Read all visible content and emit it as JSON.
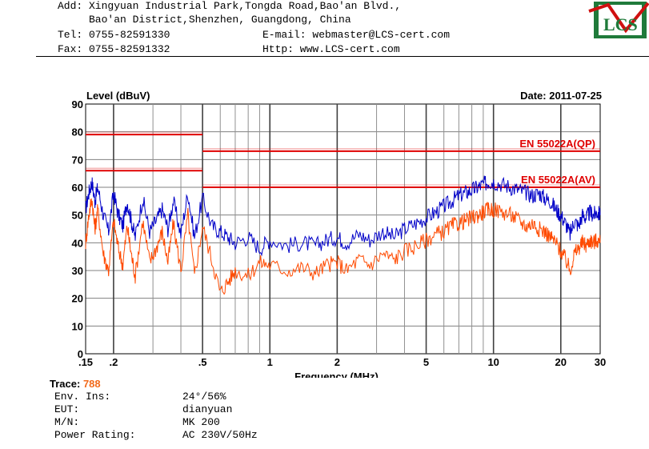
{
  "header": {
    "address_line1": "Add: Xingyuan Industrial Park,Tongda Road,Bao'an Blvd.,",
    "address_line2": "     Bao'an District,Shenzhen, Guangdong, China",
    "tel": "Tel: 0755-82591330",
    "email": "E-mail: webmaster@LCS-cert.com",
    "fax": "Fax: 0755-82591332",
    "http": "Http: www.LCS-cert.com",
    "logo_text": "LCS"
  },
  "chart_data": {
    "type": "line",
    "ylabel": "Level (dBuV)",
    "xlabel": "Frequency (MHz)",
    "date": "Date: 2011-07-25",
    "xscale": "log",
    "xlim": [
      0.15,
      30
    ],
    "ylim": [
      0,
      90
    ],
    "x_ticks": [
      {
        "v": 0.15,
        "label": ".15"
      },
      {
        "v": 0.2,
        "label": ".2"
      },
      {
        "v": 0.5,
        "label": ".5"
      },
      {
        "v": 1,
        "label": "1"
      },
      {
        "v": 2,
        "label": "2"
      },
      {
        "v": 5,
        "label": "5"
      },
      {
        "v": 10,
        "label": "10"
      },
      {
        "v": 20,
        "label": "20"
      },
      {
        "v": 30,
        "label": "30"
      }
    ],
    "y_ticks": [
      0,
      10,
      20,
      30,
      40,
      50,
      60,
      70,
      80,
      90
    ],
    "grid": true,
    "limits": [
      {
        "name": "EN 55022A(QP)",
        "segments": [
          {
            "x": [
              0.15,
              0.5
            ],
            "y": 79
          },
          {
            "x": [
              0.5,
              30
            ],
            "y": 73
          }
        ]
      },
      {
        "name": "EN 55022A(AV)",
        "segments": [
          {
            "x": [
              0.15,
              0.5
            ],
            "y": 66
          },
          {
            "x": [
              0.5,
              30
            ],
            "y": 60
          }
        ]
      }
    ],
    "series": [
      {
        "color": "#0000c8",
        "x": [
          0.15,
          0.155,
          0.16,
          0.165,
          0.17,
          0.18,
          0.19,
          0.2,
          0.21,
          0.22,
          0.23,
          0.24,
          0.25,
          0.27,
          0.29,
          0.31,
          0.33,
          0.35,
          0.37,
          0.4,
          0.43,
          0.46,
          0.5,
          0.55,
          0.6,
          0.65,
          0.7,
          0.8,
          0.9,
          1,
          1.2,
          1.4,
          1.6,
          1.8,
          2,
          2.2,
          2.5,
          2.8,
          3.2,
          3.6,
          4,
          4.5,
          5,
          5.5,
          6,
          6.5,
          7,
          7.5,
          8,
          8.5,
          9,
          9.5,
          10,
          11,
          12,
          13,
          14,
          15,
          16,
          17,
          18,
          19,
          20,
          21,
          22,
          23,
          24,
          25,
          26,
          27,
          28,
          29,
          30
        ],
        "y": [
          52,
          58,
          62,
          55,
          60,
          50,
          44,
          58,
          50,
          46,
          55,
          48,
          42,
          56,
          44,
          48,
          52,
          45,
          55,
          43,
          58,
          42,
          56,
          46,
          44,
          42,
          40,
          42,
          38,
          41,
          39,
          40,
          39,
          41,
          42,
          40,
          43,
          41,
          44,
          42,
          45,
          47,
          49,
          51,
          53,
          55,
          57,
          58,
          59,
          60,
          61,
          62,
          62,
          61,
          60,
          59,
          58,
          57,
          58,
          56,
          55,
          52,
          50,
          47,
          43,
          48,
          46,
          50,
          49,
          51,
          50,
          51,
          50
        ]
      },
      {
        "color": "#ff4a00",
        "x": [
          0.15,
          0.155,
          0.16,
          0.165,
          0.17,
          0.18,
          0.19,
          0.2,
          0.21,
          0.22,
          0.23,
          0.24,
          0.25,
          0.27,
          0.29,
          0.31,
          0.33,
          0.35,
          0.37,
          0.4,
          0.43,
          0.46,
          0.5,
          0.55,
          0.6,
          0.65,
          0.7,
          0.8,
          0.9,
          1,
          1.2,
          1.4,
          1.6,
          1.8,
          2,
          2.2,
          2.5,
          2.8,
          3.2,
          3.6,
          4,
          4.5,
          5,
          5.5,
          6,
          6.5,
          7,
          7.5,
          8,
          8.5,
          9,
          9.5,
          10,
          11,
          12,
          13,
          14,
          15,
          16,
          17,
          18,
          19,
          20,
          21,
          22,
          23,
          24,
          25,
          26,
          27,
          28,
          29,
          30
        ],
        "y": [
          40,
          50,
          56,
          45,
          52,
          36,
          30,
          48,
          38,
          32,
          46,
          36,
          28,
          48,
          33,
          38,
          44,
          33,
          47,
          30,
          50,
          28,
          46,
          34,
          22,
          26,
          30,
          28,
          33,
          32,
          30,
          31,
          29,
          32,
          33,
          30,
          34,
          32,
          36,
          34,
          37,
          39,
          41,
          43,
          44,
          46,
          47,
          48,
          49,
          50,
          51,
          52,
          52,
          51,
          50,
          48,
          46,
          47,
          45,
          44,
          42,
          40,
          37,
          34,
          30,
          36,
          38,
          40,
          39,
          41,
          40,
          41,
          40
        ]
      }
    ]
  },
  "trace": {
    "label": "Trace:",
    "value": "788"
  },
  "info": [
    {
      "label": "Env. Ins:",
      "value": "24°/56%"
    },
    {
      "label": "EUT:",
      "value": "dianyuan"
    },
    {
      "label": "M/N:",
      "value": "MK 200"
    },
    {
      "label": "Power Rating:",
      "value": "AC 230V/50Hz"
    }
  ]
}
